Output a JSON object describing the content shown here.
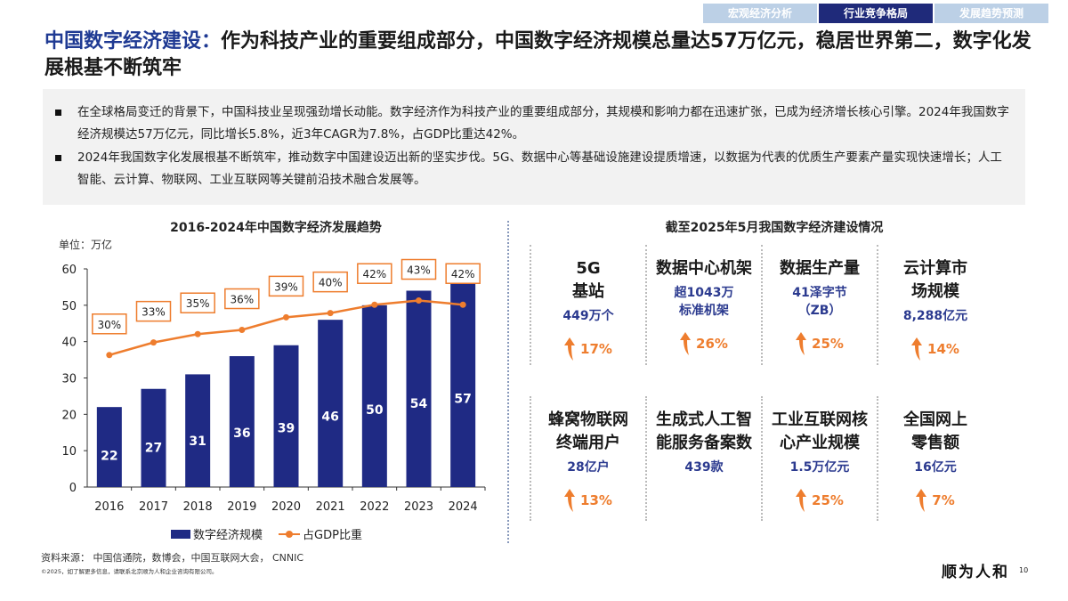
{
  "tabs": [
    {
      "label": "宏观经济分析",
      "active": false
    },
    {
      "label": "行业竞争格局",
      "active": true
    },
    {
      "label": "发展趋势预测",
      "active": false
    }
  ],
  "header": {
    "title_highlight": "中国数字经济建设：",
    "title_rest": "作为科技产业的重要组成部分，中国数字经济规模总量达57万亿元，稳居世界第二，数字化发展根基不断筑牢"
  },
  "summary": [
    "在全球格局变迁的背景下，中国科技业呈现强劲增长动能。数字经济作为科技产业的重要组成部分，其规模和影响力都在迅速扩张，已成为经济增长核心引擎。2024年我国数字经济规模达57万亿元，同比增长5.8%，近3年CAGR为7.8%，占GDP比重达42%。",
    "2024年我国数字化发展根基不断筑牢，推动数字中国建设迈出新的坚实步伐。5G、数据中心等基础设施建设提质增速，以数据为代表的优质生产要素产量实现快速增长；人工智能、云计算、物联网、工业互联网等关键前沿技术融合发展等。"
  ],
  "chart_data": {
    "type": "bar",
    "title": "2016-2024年中国数字经济发展趋势",
    "unit": "单位：万亿",
    "categories": [
      "2016",
      "2017",
      "2018",
      "2019",
      "2020",
      "2021",
      "2022",
      "2023",
      "2024"
    ],
    "ylim": [
      0,
      60
    ],
    "yticks": [
      "0",
      "10",
      "20",
      "30",
      "40",
      "50",
      "60"
    ],
    "series": [
      {
        "name": "数字经济规模",
        "type": "bar",
        "values": [
          22,
          27,
          31,
          36,
          39,
          46,
          50,
          54,
          57
        ],
        "color": "#1f2a84"
      },
      {
        "name": "占GDP比重",
        "type": "line",
        "values": [
          30,
          33,
          35,
          36,
          39,
          40,
          42,
          43,
          42
        ],
        "labels": [
          "30%",
          "33%",
          "35%",
          "36%",
          "39%",
          "40%",
          "42%",
          "43%",
          "42%"
        ],
        "color": "#ee7d2e"
      }
    ],
    "legend": "bottom"
  },
  "right": {
    "title": "截至2025年5月我国数字经济建设情况",
    "rows": [
      [
        {
          "label": "5G\n基站",
          "value": "449万个",
          "growth": "17%"
        },
        {
          "label": "数据中心机架",
          "value": "超1043万\n标准机架",
          "growth": "26%"
        },
        {
          "label": "数据生产量",
          "value": "41泽字节\n（ZB）",
          "growth": "25%"
        },
        {
          "label": "云计算市\n场规模",
          "value": "8,288亿元",
          "growth": "14%"
        }
      ],
      [
        {
          "label": "蜂窝物联网\n终端用户",
          "value": "28亿户",
          "growth": "13%"
        },
        {
          "label": "生成式人工智\n能服务备案数",
          "value": "439款",
          "growth": null
        },
        {
          "label": "工业互联网核\n心产业规模",
          "value": "1.5万亿元",
          "growth": "25%"
        },
        {
          "label": "全国网上\n零售额",
          "value": "16亿元",
          "growth": "7%"
        }
      ]
    ]
  },
  "footer": {
    "source": "资料来源：  中国信通院，数博会，中国互联网大会， CNNIC",
    "copyright": "©2025，如了解更多信息，请联系北京顺为人和企业咨询有限公司。",
    "logo": "顺为人和",
    "page": "10"
  },
  "colors": {
    "navy": "#1f2a84",
    "orange": "#ee7d2e",
    "title_blue": "#1f3a93",
    "tab_light": "#bcd0e6"
  }
}
